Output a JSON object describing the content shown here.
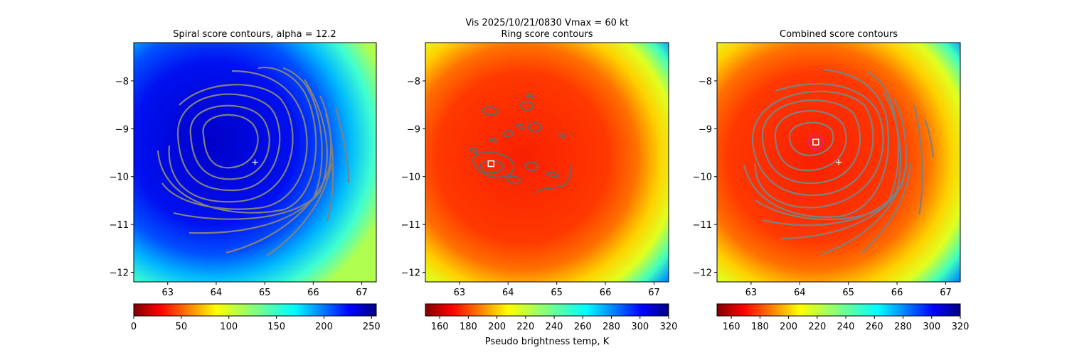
{
  "figure": {
    "suptitle_line1": "Vis  2025/10/21/0830    Vmax = 60 kt",
    "colorbar_label": "Pseudo brightness temp, K"
  },
  "chart_data": [
    {
      "type": "heatmap",
      "title": "Spiral score contours, alpha = 12.2",
      "xlim": [
        62.3,
        67.3
      ],
      "ylim": [
        -12.2,
        -7.2
      ],
      "xticks": [
        "63",
        "64",
        "65",
        "66",
        "67"
      ],
      "yticks": [
        "−8",
        "−9",
        "−10",
        "−11",
        "−12"
      ],
      "field": "cold-blue disk centered near 64.2, -9.3",
      "contour_color": "#808080",
      "marker_plus": {
        "x": 64.8,
        "y": -9.7
      },
      "colorbar": {
        "cmap": "jet_r",
        "range": [
          0,
          255
        ],
        "ticks": [
          "0",
          "50",
          "100",
          "150",
          "200",
          "250"
        ]
      }
    },
    {
      "type": "heatmap",
      "title": "Ring score contours",
      "xlim": [
        62.3,
        67.3
      ],
      "ylim": [
        -12.2,
        -7.2
      ],
      "xticks": [
        "63",
        "64",
        "65",
        "66",
        "67"
      ],
      "yticks": [
        "−8",
        "−9",
        "−10",
        "−11",
        "−12"
      ],
      "field": "warm-red disk centered near 64.3, -9.6",
      "contour_color": "#606a6a",
      "marker_square": {
        "x": 63.65,
        "y": -9.73
      },
      "colorbar": {
        "cmap": "jet_r",
        "range": [
          150,
          320
        ],
        "ticks": [
          "160",
          "180",
          "200",
          "220",
          "240",
          "260",
          "280",
          "300",
          "320"
        ]
      }
    },
    {
      "type": "heatmap",
      "title": "Combined score contours",
      "xlim": [
        62.3,
        67.3
      ],
      "ylim": [
        -12.2,
        -7.2
      ],
      "xticks": [
        "63",
        "64",
        "65",
        "66",
        "67"
      ],
      "yticks": [
        "−8",
        "−9",
        "−10",
        "−11",
        "−12"
      ],
      "field": "warm-red disk centered near 64.3, -9.6",
      "contour_color": "#808080",
      "marker_plus": {
        "x": 64.8,
        "y": -9.7
      },
      "marker_square": {
        "x": 64.33,
        "y": -9.28
      },
      "marker_circle_color": "#e0208c",
      "colorbar": {
        "cmap": "jet_r",
        "range": [
          150,
          320
        ],
        "ticks": [
          "160",
          "180",
          "200",
          "220",
          "240",
          "260",
          "280",
          "300",
          "320"
        ]
      }
    }
  ]
}
